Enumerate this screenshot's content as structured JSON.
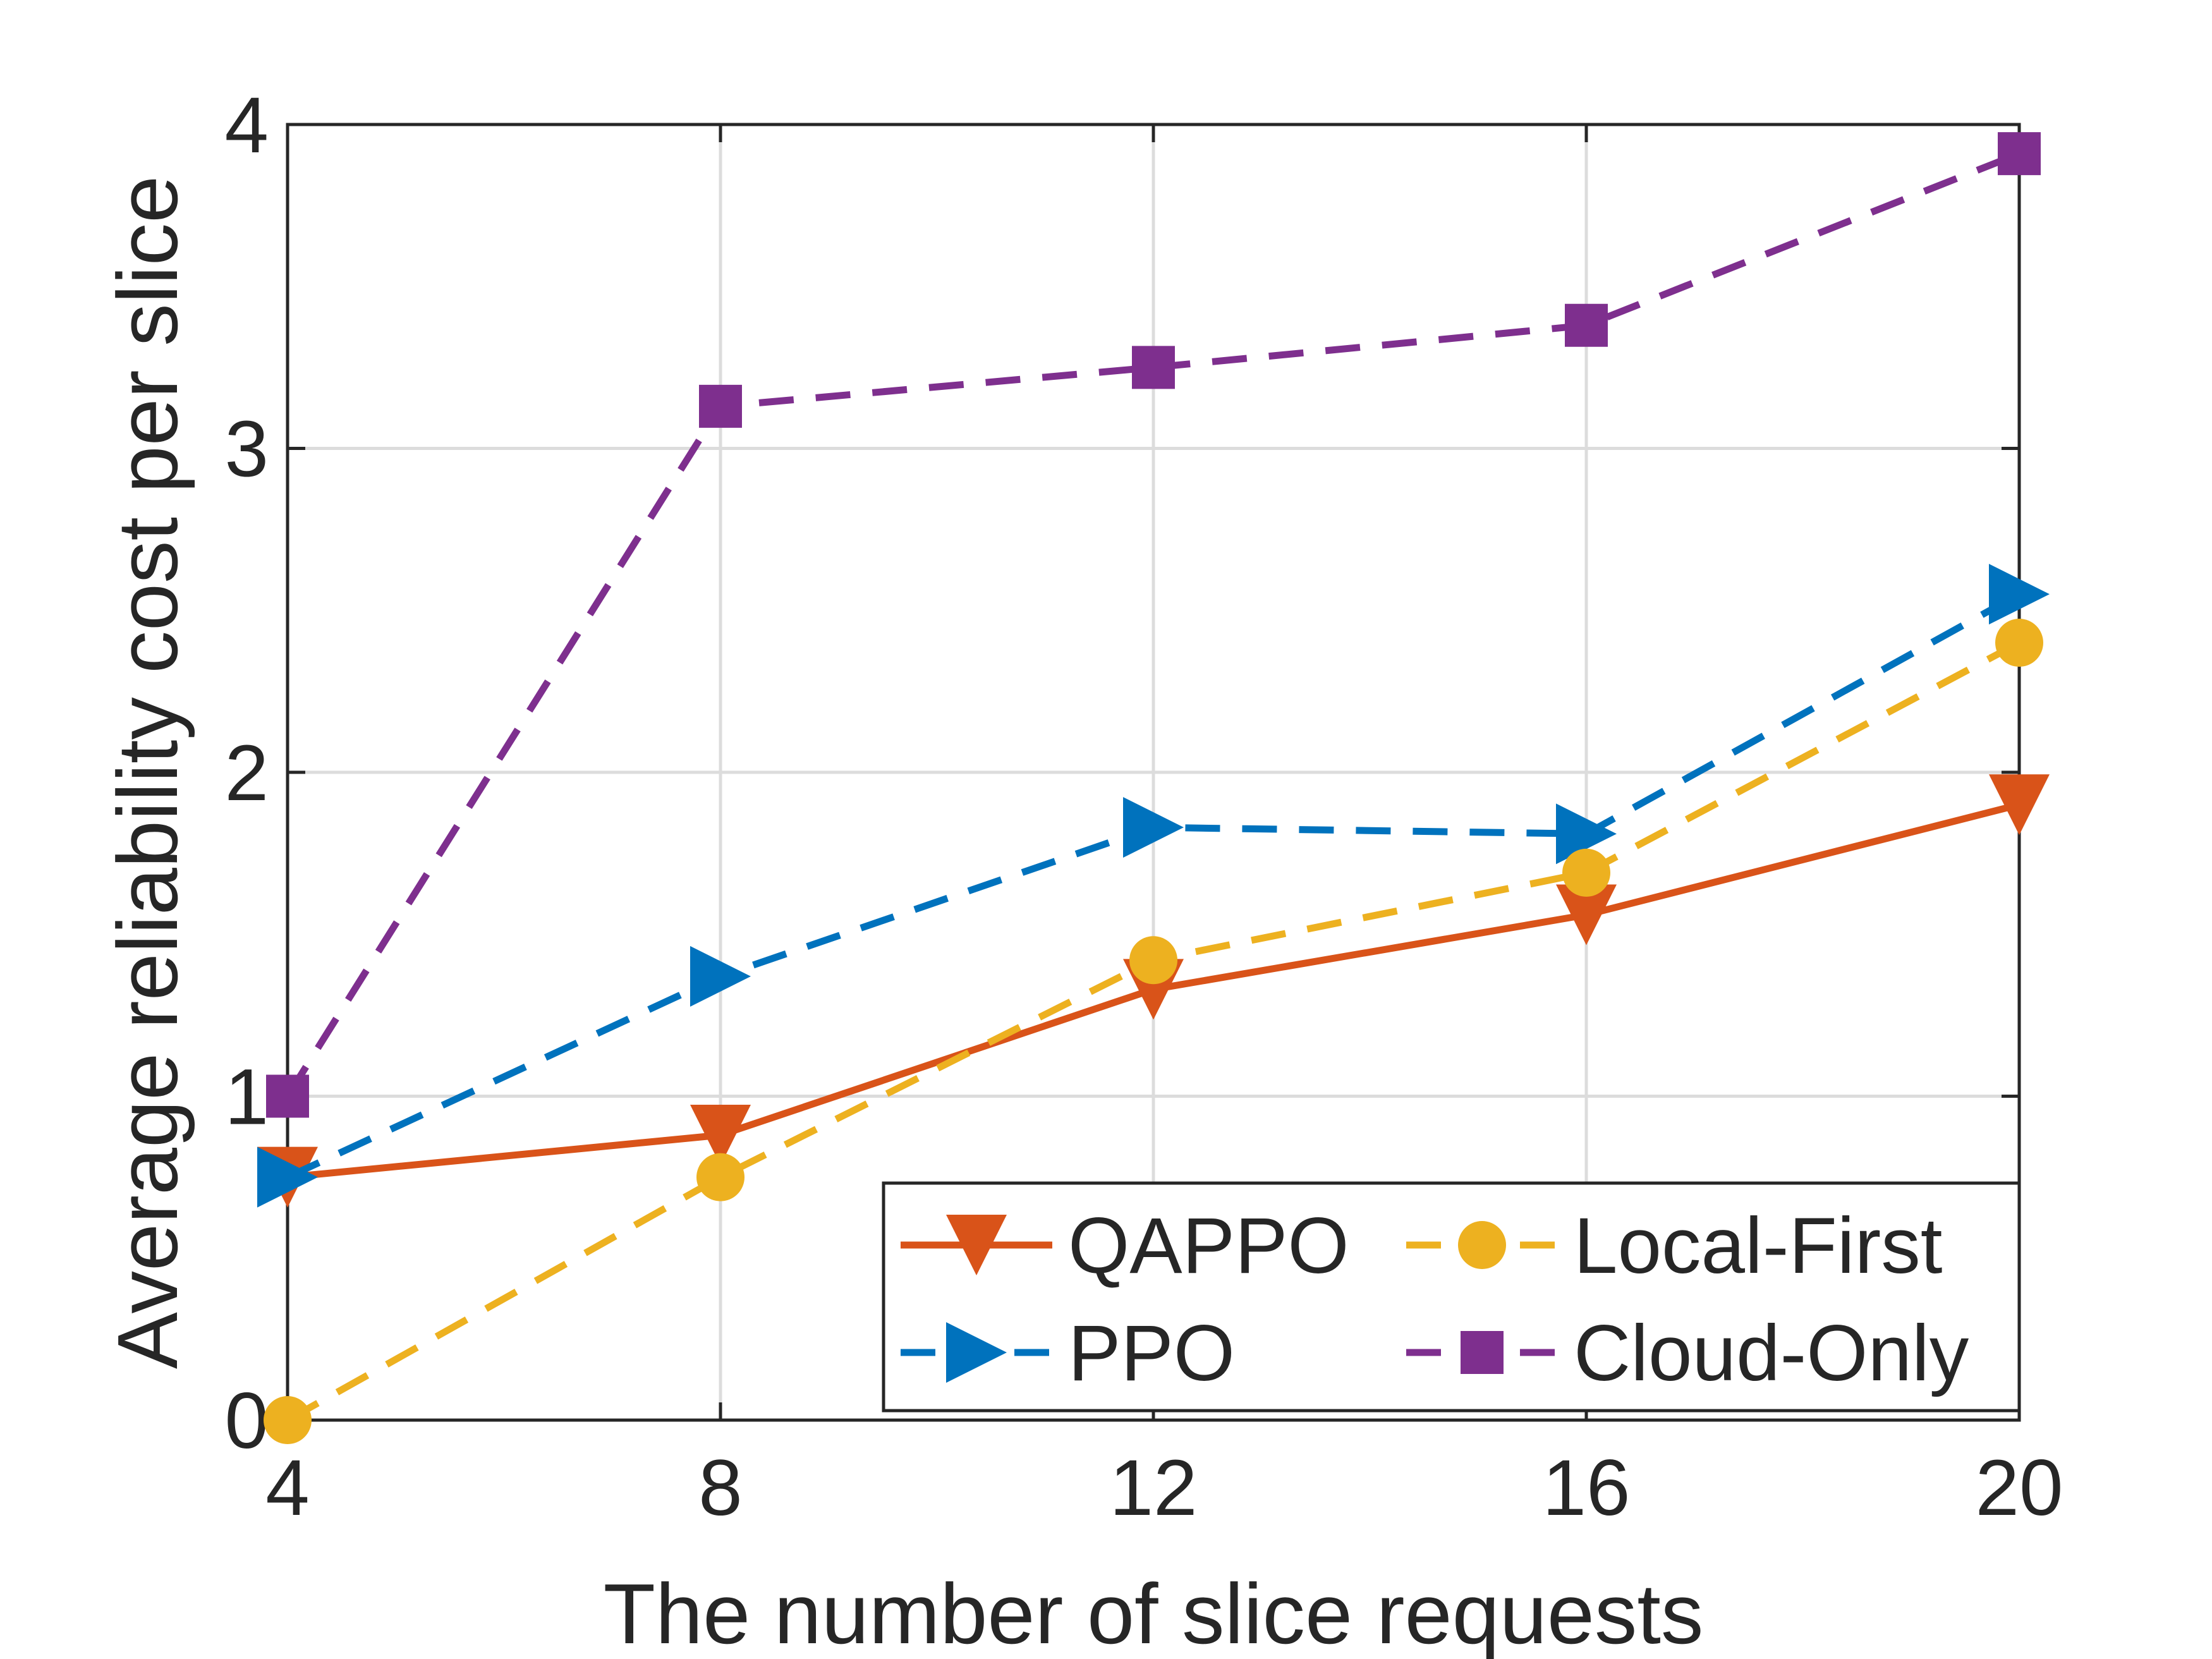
{
  "chart_data": {
    "type": "line",
    "title": "",
    "xlabel": "The number of slice requests",
    "ylabel": "Average reliability cost per slice",
    "x": [
      4,
      8,
      12,
      16,
      20
    ],
    "xlim": [
      4,
      20
    ],
    "ylim": [
      0,
      4
    ],
    "xticks": [
      "4",
      "8",
      "12",
      "16",
      "20"
    ],
    "yticks": [
      "0",
      "1",
      "2",
      "3",
      "4"
    ],
    "grid": true,
    "legend_position": "bottom-right",
    "series": [
      {
        "name": "QAPPO",
        "values": [
          0.75,
          0.88,
          1.33,
          1.56,
          1.9
        ],
        "color": "#D95319",
        "dash": "solid",
        "marker": "triangle-down"
      },
      {
        "name": "PPO",
        "values": [
          0.75,
          1.37,
          1.83,
          1.81,
          2.55
        ],
        "color": "#0072BD",
        "dash": "dashed",
        "marker": "triangle-right"
      },
      {
        "name": "Local-First",
        "values": [
          0.0,
          0.75,
          1.42,
          1.69,
          2.4
        ],
        "color": "#EDB120",
        "dash": "dashed",
        "marker": "circle"
      },
      {
        "name": "Cloud-Only",
        "values": [
          1.0,
          3.13,
          3.25,
          3.38,
          3.91
        ],
        "color": "#7E2F8E",
        "dash": "dashed",
        "marker": "square"
      }
    ]
  }
}
